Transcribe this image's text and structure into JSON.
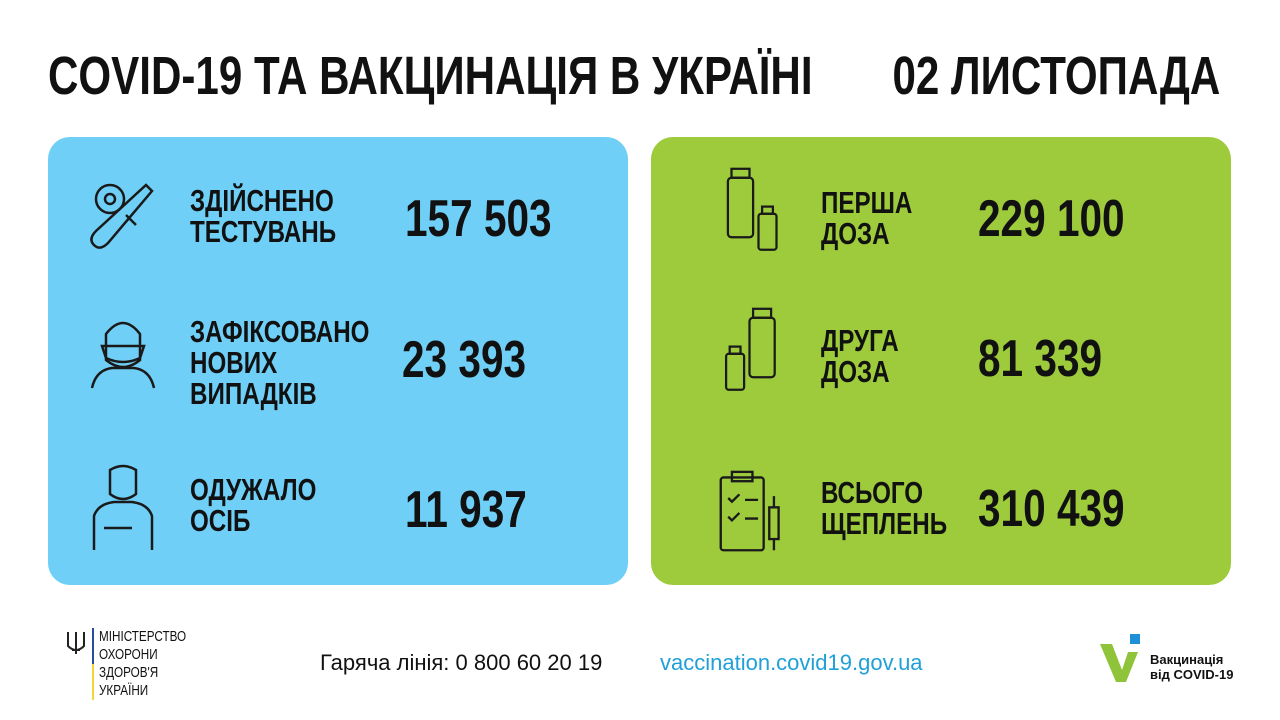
{
  "header": {
    "title": "COVID-19 ТА ВАКЦИНАЦІЯ В УКРАЇНІ",
    "date": "02 ЛИСТОПАДА"
  },
  "testing_panel": {
    "color": "#6fcff6",
    "items": [
      {
        "icon": "test-tube-virus-icon",
        "label_lines": [
          "ЗДІЙСНЕНО",
          "ТЕСТУВАНЬ"
        ],
        "value": "157 503"
      },
      {
        "icon": "masked-person-icon",
        "label_lines": [
          "ЗАФІКСОВАНО",
          "НОВИХ",
          "ВИПАДКІВ"
        ],
        "value": "23 393"
      },
      {
        "icon": "recovered-person-icon",
        "label_lines": [
          "ОДУЖАЛО",
          "ОСІБ"
        ],
        "value": "11 937"
      }
    ]
  },
  "vaccination_panel": {
    "color": "#9dcb3c",
    "items": [
      {
        "icon": "vaccine-vials-icon",
        "label_lines": [
          "ПЕРША",
          "ДОЗА"
        ],
        "value": "229 100"
      },
      {
        "icon": "vaccine-vials-icon",
        "label_lines": [
          "ДРУГА",
          "ДОЗА"
        ],
        "value": "81 339"
      },
      {
        "icon": "clipboard-syringe-icon",
        "label_lines": [
          "ВСЬОГО",
          "ЩЕПЛЕНЬ"
        ],
        "value": "310 439"
      }
    ]
  },
  "footer": {
    "ministry_lines": [
      "МІНІСТЕРСТВО",
      "ОХОРОНИ",
      "ЗДОРОВ'Я",
      "УКРАЇНИ"
    ],
    "hotline": "Гаряча лінія: 0 800 60 20 19",
    "website": "vaccination.covid19.gov.ua",
    "website_color": "#1fa0d8",
    "campaign_lines": [
      "Вакцинація",
      "від COVID-19"
    ]
  }
}
